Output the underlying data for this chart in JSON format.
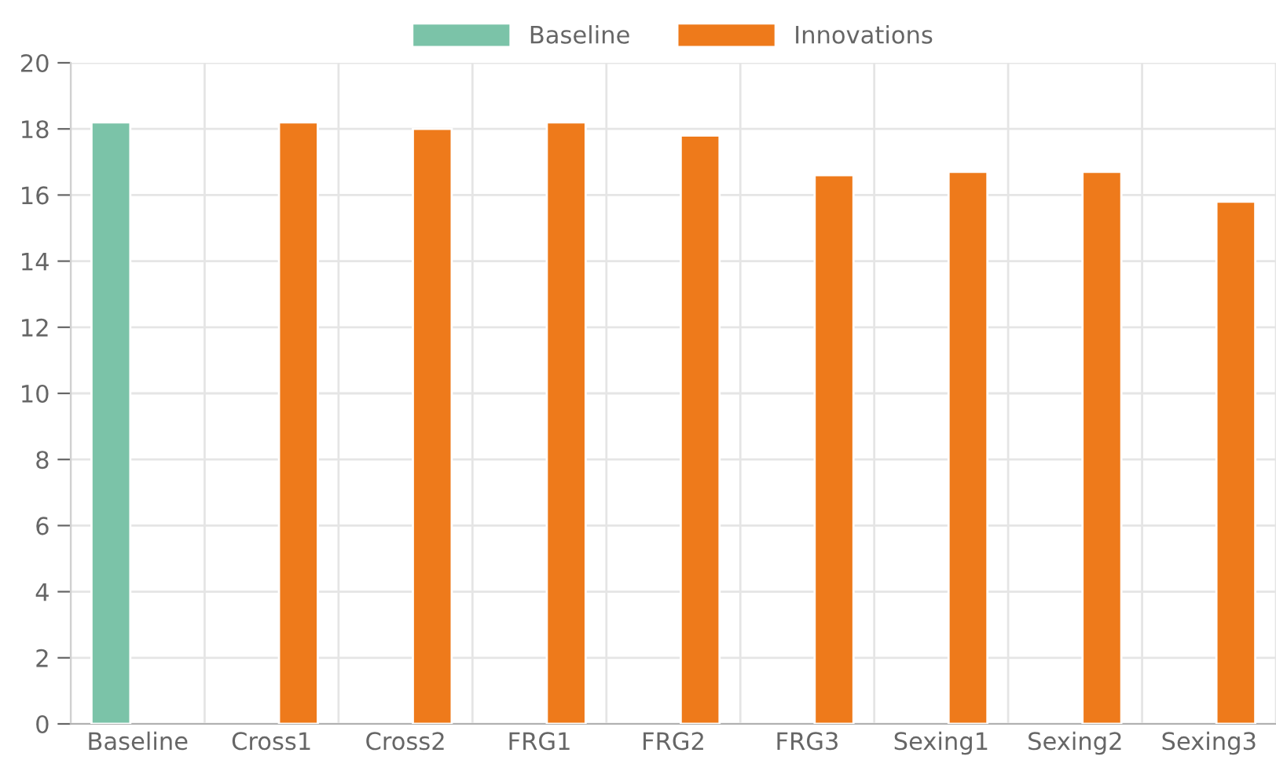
{
  "chart_data": {
    "type": "bar",
    "categories": [
      "Baseline",
      "Cross1",
      "Cross2",
      "FRG1",
      "FRG2",
      "FRG3",
      "Sexing1",
      "Sexing2",
      "Sexing3"
    ],
    "series": [
      {
        "name": "Baseline",
        "color": "#7bc3a8",
        "values": [
          18.2,
          null,
          null,
          null,
          null,
          null,
          null,
          null,
          null
        ]
      },
      {
        "name": "Innovations",
        "color": "#ee7a1b",
        "values": [
          null,
          18.2,
          18.0,
          18.2,
          17.8,
          16.6,
          16.7,
          16.7,
          15.8
        ]
      }
    ],
    "ylim": [
      0,
      20
    ],
    "yticks": [
      0,
      2,
      4,
      6,
      8,
      10,
      12,
      14,
      16,
      18,
      20
    ],
    "grid": true,
    "legend": "top"
  }
}
